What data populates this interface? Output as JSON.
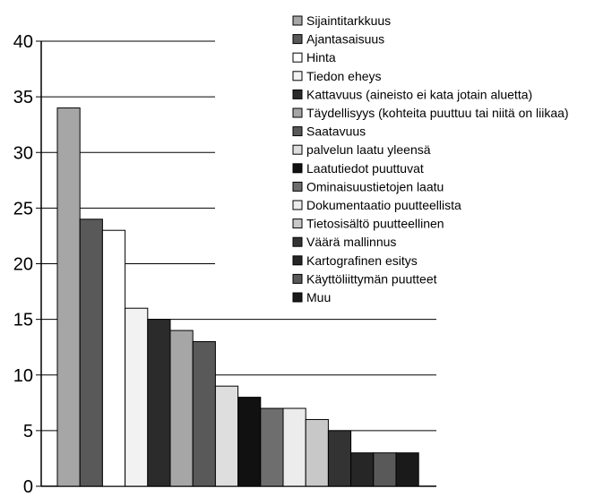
{
  "chart_data": {
    "type": "bar",
    "title": "",
    "xlabel": "",
    "ylabel": "",
    "ylim": [
      0,
      40
    ],
    "yticks": [
      0,
      5,
      10,
      15,
      20,
      25,
      30,
      35,
      40
    ],
    "grid": "horizontal",
    "legend_position": "right",
    "series": [
      {
        "name": "Sijaintitarkkuus",
        "value": 34,
        "color": "#a6a6a6"
      },
      {
        "name": "Ajantasaisuus",
        "value": 24,
        "color": "#595959"
      },
      {
        "name": "Hinta",
        "value": 23,
        "color": "#ffffff"
      },
      {
        "name": "Tiedon eheys",
        "value": 16,
        "color": "#f2f2f2"
      },
      {
        "name": "Kattavuus (aineisto ei kata jotain aluetta)",
        "value": 15,
        "color": "#2b2b2b"
      },
      {
        "name": "Täydellisyys (kohteita puuttuu tai niitä on liikaa)",
        "value": 14,
        "color": "#a6a6a6"
      },
      {
        "name": "Saatavuus",
        "value": 13,
        "color": "#595959"
      },
      {
        "name": "palvelun laatu yleensä",
        "value": 9,
        "color": "#dedede"
      },
      {
        "name": "Laatutiedot puuttuvat",
        "value": 8,
        "color": "#111111"
      },
      {
        "name": "Ominaisuustietojen laatu",
        "value": 7,
        "color": "#6e6e6e"
      },
      {
        "name": "Dokumentaatio puutteellista",
        "value": 7,
        "color": "#ececec"
      },
      {
        "name": "Tietosisältö puutteellinen",
        "value": 6,
        "color": "#c8c8c8"
      },
      {
        "name": "Väärä mallinnus",
        "value": 5,
        "color": "#333333"
      },
      {
        "name": "Kartografinen esitys",
        "value": 3,
        "color": "#262626"
      },
      {
        "name": "Käyttöliittymän puutteet",
        "value": 3,
        "color": "#595959"
      },
      {
        "name": "Muu",
        "value": 3,
        "color": "#1a1a1a"
      }
    ]
  }
}
